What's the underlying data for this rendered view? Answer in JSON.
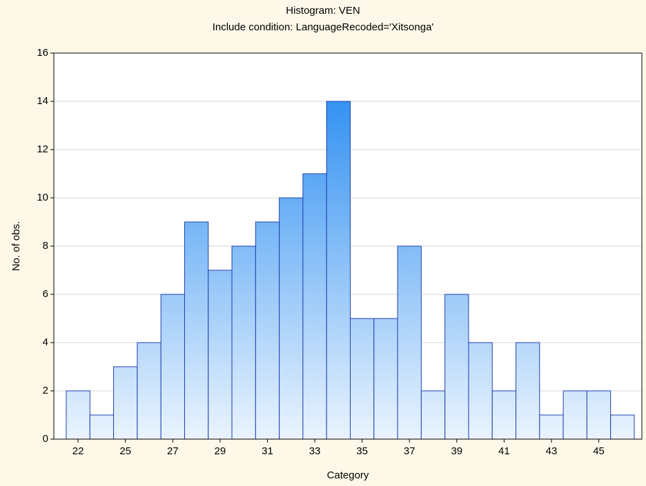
{
  "chart_data": {
    "type": "bar",
    "title": "Histogram: VEN",
    "subtitle": "Include condition: LanguageRecoded='Xitsonga'",
    "x_label": "Category",
    "y_label": "No. of obs.",
    "categories": [
      "22",
      null,
      "25",
      null,
      "27",
      null,
      "29",
      null,
      "31",
      null,
      "33",
      null,
      "35",
      null,
      "37",
      null,
      "39",
      null,
      "41",
      null,
      "43",
      null,
      "45",
      null
    ],
    "values": [
      2,
      1,
      3,
      4,
      6,
      9,
      7,
      8,
      9,
      10,
      11,
      14,
      5,
      5,
      8,
      2,
      6,
      4,
      2,
      4,
      1,
      2,
      2,
      1
    ],
    "color": "#1a84f0",
    "ylim": [
      0,
      16
    ],
    "yticks": [
      0,
      2,
      4,
      6,
      8,
      10,
      12,
      14,
      16
    ],
    "grid": true
  }
}
